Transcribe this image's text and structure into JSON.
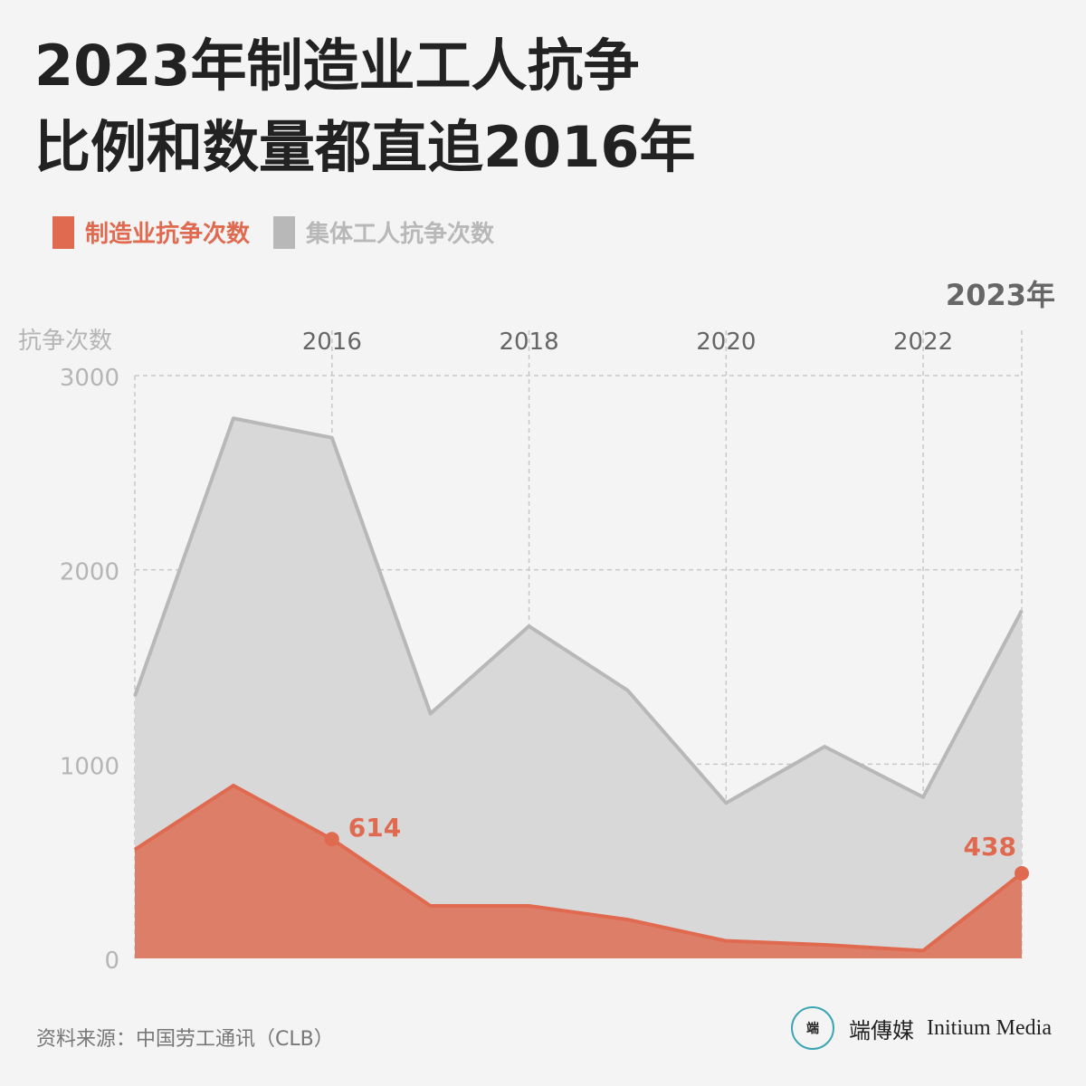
{
  "title": {
    "line1": "2023年制造业工人抗争",
    "line2": "比例和数量都直追2016年"
  },
  "legend": [
    {
      "label": "制造业抗争次数",
      "color": "#e06a50"
    },
    {
      "label": "集体工人抗争次数",
      "color": "#b8b8b8"
    }
  ],
  "source": "资料来源：中国劳工通讯（CLB）",
  "logo": {
    "mark": "端",
    "cn": "端傳媒",
    "en": "Initium Media"
  },
  "chart_data": {
    "type": "area",
    "ylabel": "抗争次数",
    "ylim": [
      0,
      3000
    ],
    "yticks": [
      0,
      1000,
      2000,
      3000
    ],
    "x": [
      2014,
      2015,
      2016,
      2017,
      2018,
      2019,
      2020,
      2021,
      2022,
      2023
    ],
    "xlim": [
      2014,
      2023
    ],
    "xticks": [
      {
        "year": 2016,
        "label": "2016"
      },
      {
        "year": 2018,
        "label": "2018"
      },
      {
        "year": 2020,
        "label": "2020"
      },
      {
        "year": 2022,
        "label": "2022"
      },
      {
        "year": 2023,
        "label": "2023年"
      }
    ],
    "grid": true,
    "series": [
      {
        "name": "集体工人抗争次数",
        "color": "#b8b8b8",
        "fill": "#d8d8d8",
        "values": [
          1350,
          2780,
          2680,
          1260,
          1710,
          1380,
          800,
          1090,
          830,
          1790
        ]
      },
      {
        "name": "制造业抗争次数",
        "color": "#e06a50",
        "fill": "#dd7e69",
        "values": [
          560,
          890,
          614,
          270,
          270,
          200,
          90,
          70,
          40,
          438
        ]
      }
    ],
    "annotations": [
      {
        "series": 1,
        "x": 2016,
        "label": "614"
      },
      {
        "series": 1,
        "x": 2023,
        "label": "438"
      }
    ]
  }
}
